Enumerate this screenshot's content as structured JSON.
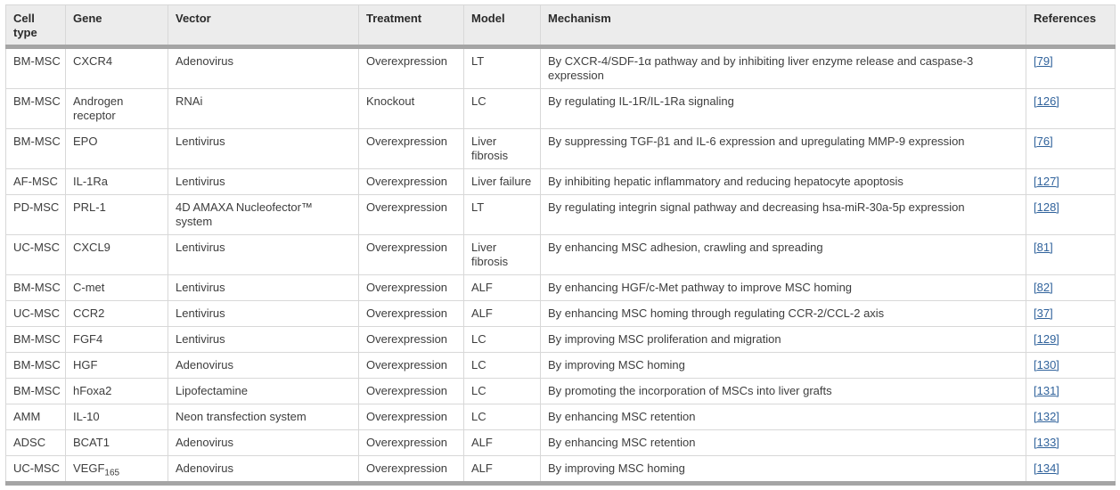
{
  "table": {
    "columns": [
      "Cell type",
      "Gene",
      "Vector",
      "Treatment",
      "Model",
      "Mechanism",
      "References"
    ],
    "rows": [
      {
        "cell_type": "BM-MSC",
        "gene": "CXCR4",
        "vector": "Adenovirus",
        "treatment": "Overexpression",
        "model": "LT",
        "mechanism": "By CXCR-4/SDF-1α pathway and by inhibiting liver enzyme release and caspase-3 expression",
        "reference": "[79]"
      },
      {
        "cell_type": "BM-MSC",
        "gene": "Androgen receptor",
        "vector": "RNAi",
        "treatment": "Knockout",
        "model": "LC",
        "mechanism": "By regulating IL-1R/IL-1Ra signaling",
        "reference": "[126]"
      },
      {
        "cell_type": "BM-MSC",
        "gene": "EPO",
        "vector": "Lentivirus",
        "treatment": "Overexpression",
        "model": "Liver fibrosis",
        "mechanism": "By suppressing TGF-β1 and IL-6 expression and upregulating MMP-9 expression",
        "reference": "[76]"
      },
      {
        "cell_type": "AF-MSC",
        "gene": "IL-1Ra",
        "vector": "Lentivirus",
        "treatment": "Overexpression",
        "model": "Liver failure",
        "mechanism": "By inhibiting hepatic inflammatory and reducing hepatocyte apoptosis",
        "reference": "[127]"
      },
      {
        "cell_type": "PD-MSC",
        "gene": "PRL-1",
        "vector": "4D AMAXA Nucleofector™ system",
        "treatment": "Overexpression",
        "model": "LT",
        "mechanism": "By regulating integrin signal pathway and decreasing hsa-miR-30a-5p expression",
        "reference": "[128]"
      },
      {
        "cell_type": "UC-MSC",
        "gene": "CXCL9",
        "vector": "Lentivirus",
        "treatment": "Overexpression",
        "model": "Liver fibrosis",
        "mechanism": "By enhancing MSC adhesion, crawling and spreading",
        "reference": "[81]"
      },
      {
        "cell_type": "BM-MSC",
        "gene": "C-met",
        "vector": "Lentivirus",
        "treatment": "Overexpression",
        "model": "ALF",
        "mechanism": "By enhancing HGF/c-Met pathway to improve MSC homing",
        "reference": "[82]"
      },
      {
        "cell_type": "UC-MSC",
        "gene": "CCR2",
        "vector": "Lentivirus",
        "treatment": "Overexpression",
        "model": "ALF",
        "mechanism": "By enhancing MSC homing through regulating CCR-2/CCL-2 axis",
        "reference": "[37]"
      },
      {
        "cell_type": "BM-MSC",
        "gene": "FGF4",
        "vector": "Lentivirus",
        "treatment": "Overexpression",
        "model": "LC",
        "mechanism": "By improving MSC proliferation and migration",
        "reference": "[129]"
      },
      {
        "cell_type": "BM-MSC",
        "gene": "HGF",
        "vector": "Adenovirus",
        "treatment": "Overexpression",
        "model": "LC",
        "mechanism": "By improving MSC homing",
        "reference": "[130]"
      },
      {
        "cell_type": "BM-MSC",
        "gene": "hFoxa2",
        "vector": "Lipofectamine",
        "treatment": "Overexpression",
        "model": "LC",
        "mechanism": "By promoting the incorporation of MSCs into liver grafts",
        "reference": "[131]"
      },
      {
        "cell_type": "AMM",
        "gene": "IL-10",
        "vector": "Neon transfection system",
        "treatment": "Overexpression",
        "model": "LC",
        "mechanism": "By enhancing MSC retention",
        "reference": "[132]"
      },
      {
        "cell_type": "ADSC",
        "gene": "BCAT1",
        "vector": "Adenovirus",
        "treatment": "Overexpression",
        "model": "ALF",
        "mechanism": "By enhancing MSC retention",
        "reference": "[133]"
      },
      {
        "cell_type": "UC-MSC",
        "gene": "VEGF",
        "gene_sub": "165",
        "vector": "Adenovirus",
        "treatment": "Overexpression",
        "model": "ALF",
        "mechanism": "By improving MSC homing",
        "reference": "[134]"
      }
    ],
    "colors": {
      "link": "#31639c",
      "header_bg": "#ececec",
      "heavy_rule": "#a5a5a5",
      "grid_line": "#d8d8d8",
      "body_text": "#3d3d3d"
    }
  }
}
